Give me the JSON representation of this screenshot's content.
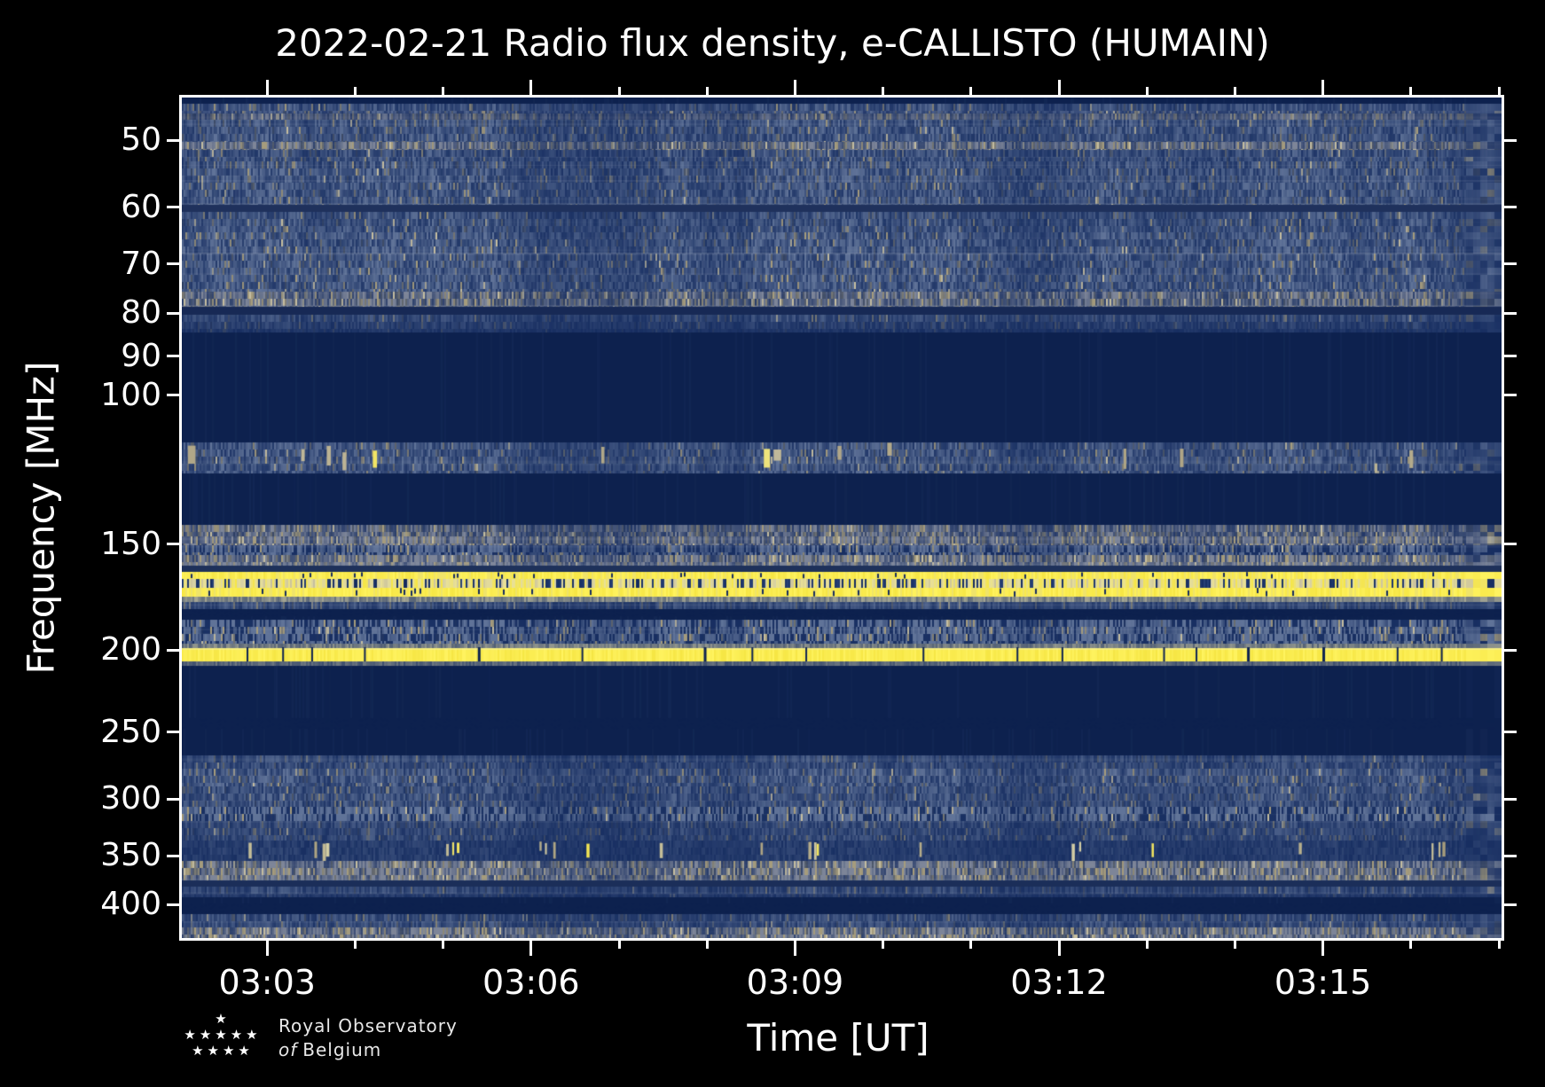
{
  "title": "2022-02-21 Radio flux density, e-CALLISTO (HUMAIN)",
  "axes": {
    "x_label": "Time [UT]",
    "y_label": "Frequency [MHz]"
  },
  "footer": {
    "logo_line1": "Royal Observatory",
    "logo_line2_italic": "of",
    "logo_line2": "Belgium",
    "star_rows": [
      1,
      5,
      4
    ]
  },
  "chart_data": {
    "type": "heatmap",
    "subtype": "radio-spectrogram",
    "title": "2022-02-21 Radio flux density, e-CALLISTO (HUMAIN)",
    "xlabel": "Time [UT]",
    "ylabel": "Frequency [MHz]",
    "x_start": "03:02",
    "x_end": "03:17",
    "x_major_ticks": [
      "03:03",
      "03:06",
      "03:09",
      "03:12",
      "03:15"
    ],
    "x_major_tick_minutes": [
      3,
      6,
      9,
      12,
      15
    ],
    "x_minor_tick_interval_min": 1,
    "y_scale": "log",
    "y_min_mhz": 44.5,
    "y_max_mhz": 438,
    "y_ticks_mhz": [
      50,
      60,
      70,
      80,
      90,
      100,
      150,
      200,
      250,
      300,
      350,
      400
    ],
    "y_orientation": "frequency-increases-downward",
    "legend": "none",
    "grid": "off",
    "colors": {
      "background_quiet": "#0d214e",
      "noise_blue": "#264278",
      "noise_light_blue": "#60739a",
      "tan_rfi": "#a69c7c",
      "tan_bright": "#c6bea0",
      "yellow_rfi": "#f6e644",
      "pale_yellow": "#e9e196",
      "cream": "#d5cfa6",
      "frame": "#ffffff"
    },
    "bands": [
      {
        "f1": 44.5,
        "f2": 45.3,
        "type": "quiet"
      },
      {
        "f1": 45.3,
        "f2": 46.5,
        "type": "noise",
        "level": 0.45
      },
      {
        "f1": 46.5,
        "f2": 47.3,
        "type": "band_light",
        "level": 0.45
      },
      {
        "f1": 47.3,
        "f2": 50.2,
        "type": "noise",
        "level": 0.5
      },
      {
        "f1": 50.2,
        "f2": 51.3,
        "type": "band_light",
        "level": 0.65
      },
      {
        "f1": 51.3,
        "f2": 53.0,
        "type": "noise",
        "level": 0.45
      },
      {
        "f1": 53.0,
        "f2": 59.6,
        "type": "noise",
        "level": 0.52
      },
      {
        "f1": 59.6,
        "f2": 60.8,
        "type": "tan_line",
        "level": 0.95
      },
      {
        "f1": 60.8,
        "f2": 64.2,
        "type": "noise",
        "level": 0.48
      },
      {
        "f1": 64.2,
        "f2": 75.4,
        "type": "noise",
        "level": 0.55
      },
      {
        "f1": 75.4,
        "f2": 78.7,
        "type": "band_light",
        "level": 0.6
      },
      {
        "f1": 78.7,
        "f2": 80.4,
        "type": "tan_line",
        "level": 0.75
      },
      {
        "f1": 80.4,
        "f2": 84.3,
        "type": "noise_fade",
        "level": 0.35
      },
      {
        "f1": 84.3,
        "f2": 113.6,
        "type": "quiet"
      },
      {
        "f1": 113.6,
        "f2": 123.8,
        "type": "noise_sparse",
        "level": 0.5
      },
      {
        "f1": 123.8,
        "f2": 142.5,
        "type": "quiet"
      },
      {
        "f1": 142.5,
        "f2": 147.0,
        "type": "band_light",
        "level": 0.55
      },
      {
        "f1": 147.0,
        "f2": 150.4,
        "type": "band_light",
        "level": 0.68
      },
      {
        "f1": 150.4,
        "f2": 154.5,
        "type": "noise_striated",
        "level": 0.5
      },
      {
        "f1": 154.5,
        "f2": 159.0,
        "type": "band_light",
        "level": 0.75
      },
      {
        "f1": 159.0,
        "f2": 161.6,
        "type": "tan_line",
        "level": 0.8
      },
      {
        "f1": 161.6,
        "f2": 164.8,
        "type": "yellow"
      },
      {
        "f1": 164.8,
        "f2": 168.8,
        "type": "yellow_mixed"
      },
      {
        "f1": 168.8,
        "f2": 172.9,
        "type": "yellow"
      },
      {
        "f1": 172.9,
        "f2": 175.4,
        "type": "pale_fade",
        "level": 0.8
      },
      {
        "f1": 175.4,
        "f2": 178.8,
        "type": "noise",
        "level": 0.4
      },
      {
        "f1": 178.8,
        "f2": 182.6,
        "type": "dotted",
        "level": 0.5
      },
      {
        "f1": 182.6,
        "f2": 184.3,
        "type": "quiet"
      },
      {
        "f1": 184.3,
        "f2": 196.6,
        "type": "noise_striated",
        "level": 0.6
      },
      {
        "f1": 196.6,
        "f2": 198.9,
        "type": "pale_fade",
        "level": 0.7
      },
      {
        "f1": 198.9,
        "f2": 206.3,
        "type": "yellow_ticks"
      },
      {
        "f1": 206.3,
        "f2": 208.8,
        "type": "pale_fade",
        "level": 0.5
      },
      {
        "f1": 208.8,
        "f2": 240.9,
        "type": "quiet"
      },
      {
        "f1": 240.9,
        "f2": 247.9,
        "type": "dotted",
        "level": 0.55
      },
      {
        "f1": 247.9,
        "f2": 266.4,
        "type": "quiet"
      },
      {
        "f1": 266.4,
        "f2": 276.6,
        "type": "noise",
        "level": 0.38
      },
      {
        "f1": 276.6,
        "f2": 289.8,
        "type": "noise",
        "level": 0.52
      },
      {
        "f1": 289.8,
        "f2": 306.8,
        "type": "noise",
        "level": 0.45
      },
      {
        "f1": 306.8,
        "f2": 318.5,
        "type": "noise_striated",
        "level": 0.62
      },
      {
        "f1": 318.5,
        "f2": 335.9,
        "type": "noise",
        "level": 0.35
      },
      {
        "f1": 335.9,
        "f2": 354.8,
        "type": "bursts",
        "level": 0.25
      },
      {
        "f1": 354.8,
        "f2": 374.8,
        "type": "band_light",
        "level": 0.72
      },
      {
        "f1": 374.8,
        "f2": 381.2,
        "type": "tan_line",
        "level": 0.6
      },
      {
        "f1": 381.2,
        "f2": 392.0,
        "type": "noise_fade",
        "level": 0.35
      },
      {
        "f1": 392.0,
        "f2": 398.3,
        "type": "quiet"
      },
      {
        "f1": 398.3,
        "f2": 410.6,
        "type": "dotted",
        "level": 0.6
      },
      {
        "f1": 410.6,
        "f2": 425.4,
        "type": "noise",
        "level": 0.4
      },
      {
        "f1": 425.4,
        "f2": 438.0,
        "type": "band_light",
        "level": 0.7
      }
    ]
  }
}
